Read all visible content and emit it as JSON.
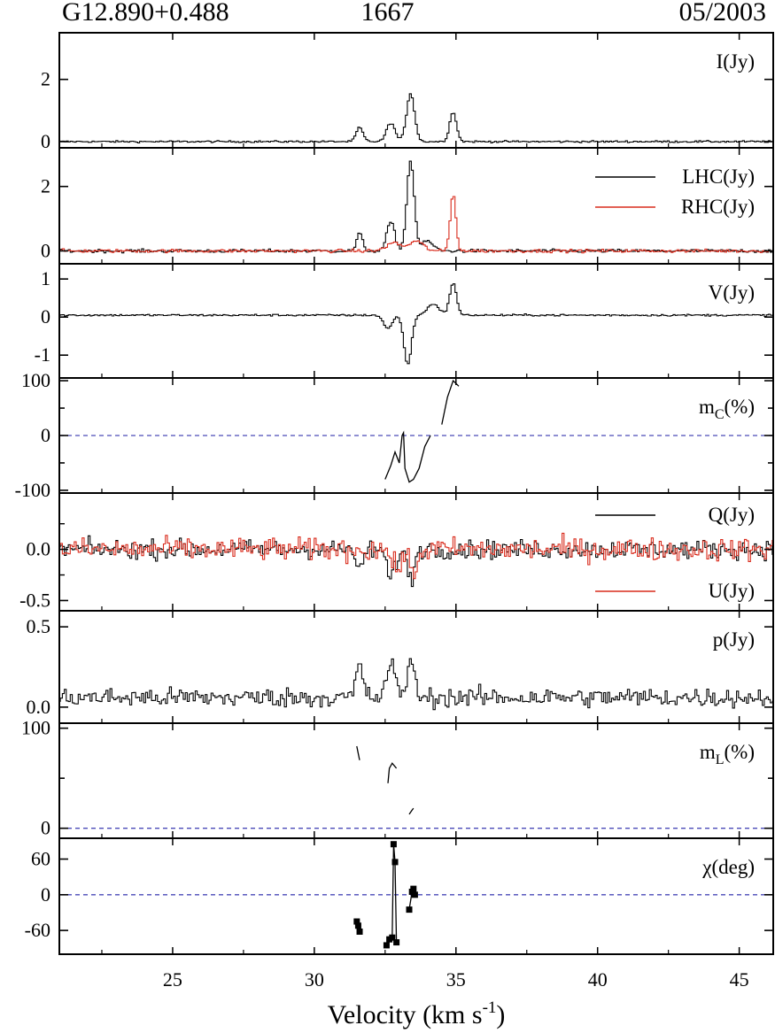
{
  "header": {
    "source": "G12.890+0.488",
    "frequency": "1667",
    "date": "05/2003"
  },
  "colors": {
    "black_series": "#000000",
    "red_series": "#d92b1c",
    "zero_line": "#4a4ab8"
  },
  "chart_data": {
    "type": "line",
    "xlabel": "Velocity (km s",
    "xlabel_sup": "-1",
    "xlabel_end": ")",
    "xlim": [
      21,
      46.2
    ],
    "xticks": [
      25,
      30,
      35,
      40,
      45
    ],
    "panels": [
      {
        "key": "I",
        "label": "I(Jy)",
        "ylim": [
          -0.2,
          3.5
        ],
        "yticks": [
          0,
          2
        ],
        "yticklabels": [
          "0",
          "2"
        ],
        "style": "step",
        "zero_line": false,
        "series": [
          {
            "color": "black",
            "noise": 0.03,
            "base": 0.0,
            "peaks": [
              [
                31.6,
                0.45,
                0.12
              ],
              [
                32.7,
                0.6,
                0.15
              ],
              [
                33.4,
                1.55,
                0.14
              ],
              [
                34.9,
                0.95,
                0.12
              ]
            ]
          }
        ]
      },
      {
        "key": "LR",
        "label": "",
        "ylim": [
          -0.4,
          3.2
        ],
        "yticks": [
          0,
          2
        ],
        "yticklabels": [
          "0",
          "2"
        ],
        "style": "step",
        "zero_line": false,
        "legend": [
          {
            "name": "LHC(Jy)",
            "color": "black"
          },
          {
            "name": "RHC(Jy)",
            "color": "red"
          }
        ],
        "series": [
          {
            "name": "LHC(Jy)",
            "color": "black",
            "noise": 0.05,
            "base": 0.0,
            "peaks": [
              [
                31.6,
                0.55,
                0.1
              ],
              [
                32.7,
                0.9,
                0.14
              ],
              [
                33.4,
                2.8,
                0.13
              ],
              [
                34.0,
                0.3,
                0.2
              ]
            ]
          },
          {
            "name": "RHC(Jy)",
            "color": "red",
            "noise": 0.05,
            "base": 0.0,
            "peaks": [
              [
                32.8,
                0.25,
                0.25
              ],
              [
                33.6,
                0.3,
                0.25
              ],
              [
                34.9,
                1.75,
                0.1
              ]
            ]
          }
        ]
      },
      {
        "key": "V",
        "label": "V(Jy)",
        "ylim": [
          -1.6,
          1.4
        ],
        "yticks": [
          -1,
          0,
          1
        ],
        "yticklabels": [
          "-1",
          "0",
          "1"
        ],
        "style": "step",
        "zero_line": false,
        "series": [
          {
            "color": "black",
            "noise": 0.025,
            "base": 0.05,
            "peaks": [
              [
                32.6,
                -0.35,
                0.15
              ],
              [
                33.3,
                -1.3,
                0.13
              ],
              [
                34.2,
                0.3,
                0.2
              ],
              [
                34.9,
                0.85,
                0.12
              ]
            ]
          }
        ]
      },
      {
        "key": "mC",
        "label": "m",
        "label_sub": "C",
        "label_end": "(%)",
        "ylim": [
          -105,
          105
        ],
        "yticks": [
          -100,
          -50,
          0,
          50,
          100
        ],
        "yticklabels": [
          "-100",
          "",
          "0",
          "",
          "100"
        ],
        "style": "line",
        "zero_line": true,
        "series": [
          {
            "color": "black",
            "segments": [
              [
                [
                  32.5,
                  -80
                ],
                [
                  32.7,
                  -55
                ],
                [
                  32.85,
                  -30
                ],
                [
                  33.0,
                  -50
                ],
                [
                  33.1,
                  0
                ],
                [
                  33.15,
                  5
                ],
                [
                  33.2,
                  -60
                ],
                [
                  33.35,
                  -85
                ],
                [
                  33.5,
                  -80
                ],
                [
                  33.7,
                  -60
                ],
                [
                  33.9,
                  -20
                ],
                [
                  34.1,
                  0
                ]
              ],
              [
                [
                  34.5,
                  20
                ],
                [
                  34.6,
                  45
                ],
                [
                  34.7,
                  70
                ],
                [
                  34.8,
                  85
                ],
                [
                  34.9,
                  100
                ],
                [
                  35.0,
                  95
                ],
                [
                  35.1,
                  90
                ]
              ]
            ]
          }
        ]
      },
      {
        "key": "QU",
        "label": "",
        "ylim": [
          -0.6,
          0.55
        ],
        "yticks": [
          -0.5,
          0.0
        ],
        "yticklabels": [
          "-0.5",
          "0.0"
        ],
        "minor_yticks": [
          -0.25,
          0.25
        ],
        "style": "step",
        "zero_line": false,
        "legend": [
          {
            "name": "Q(Jy)",
            "color": "black"
          },
          {
            "name": "U(Jy)",
            "color": "red"
          }
        ],
        "series": [
          {
            "name": "Q(Jy)",
            "color": "black",
            "noise": 0.09,
            "base": 0.0,
            "peaks": [
              [
                31.6,
                -0.25,
                0.1
              ],
              [
                32.7,
                -0.28,
                0.15
              ],
              [
                33.4,
                -0.3,
                0.12
              ]
            ]
          },
          {
            "name": "U(Jy)",
            "color": "red",
            "noise": 0.11,
            "base": 0.0,
            "peaks": [
              [
                32.9,
                -0.2,
                0.15
              ],
              [
                33.5,
                -0.28,
                0.12
              ]
            ]
          }
        ]
      },
      {
        "key": "p",
        "label": "p(Jy)",
        "ylim": [
          -0.1,
          0.6
        ],
        "yticks": [
          0.0,
          0.5
        ],
        "yticklabels": [
          "0.0",
          "0.5"
        ],
        "style": "step",
        "zero_line": false,
        "series": [
          {
            "color": "black",
            "noise": 0.06,
            "base": 0.06,
            "peaks": [
              [
                31.6,
                0.2,
                0.12
              ],
              [
                32.7,
                0.22,
                0.14
              ],
              [
                33.4,
                0.25,
                0.12
              ]
            ]
          }
        ]
      },
      {
        "key": "mL",
        "label": "m",
        "label_sub": "L",
        "label_end": "(%)",
        "ylim": [
          -10,
          105
        ],
        "yticks": [
          0,
          50,
          100
        ],
        "yticklabels": [
          "0",
          "",
          "100"
        ],
        "style": "line",
        "zero_line": true,
        "series": [
          {
            "color": "black",
            "segments": [
              [
                [
                  31.5,
                  82
                ],
                [
                  31.55,
                  75
                ],
                [
                  31.6,
                  68
                ]
              ],
              [
                [
                  32.6,
                  45
                ],
                [
                  32.65,
                  60
                ],
                [
                  32.75,
                  65
                ],
                [
                  32.9,
                  60
                ]
              ],
              [
                [
                  33.35,
                  14
                ],
                [
                  33.45,
                  18
                ],
                [
                  33.5,
                  20
                ]
              ]
            ]
          }
        ]
      },
      {
        "key": "chi",
        "label": "χ(deg)",
        "ylim": [
          -100,
          95
        ],
        "yticks": [
          -60,
          0,
          60
        ],
        "yticklabels": [
          "-60",
          "0",
          "60"
        ],
        "style": "line",
        "zero_line": true,
        "series": [
          {
            "color": "black",
            "markers": true,
            "segments": [
              [
                [
                  31.5,
                  -45
                ],
                [
                  31.55,
                  -52
                ],
                [
                  31.6,
                  -62
                ]
              ],
              [
                [
                  32.55,
                  -85
                ],
                [
                  32.65,
                  -75
                ],
                [
                  32.75,
                  -72
                ],
                [
                  32.8,
                  85
                ],
                [
                  32.85,
                  55
                ],
                [
                  32.9,
                  -80
                ]
              ],
              [
                [
                  33.35,
                  -25
                ],
                [
                  33.45,
                  5
                ],
                [
                  33.5,
                  10
                ],
                [
                  33.55,
                  0
                ]
              ]
            ]
          }
        ]
      }
    ]
  }
}
